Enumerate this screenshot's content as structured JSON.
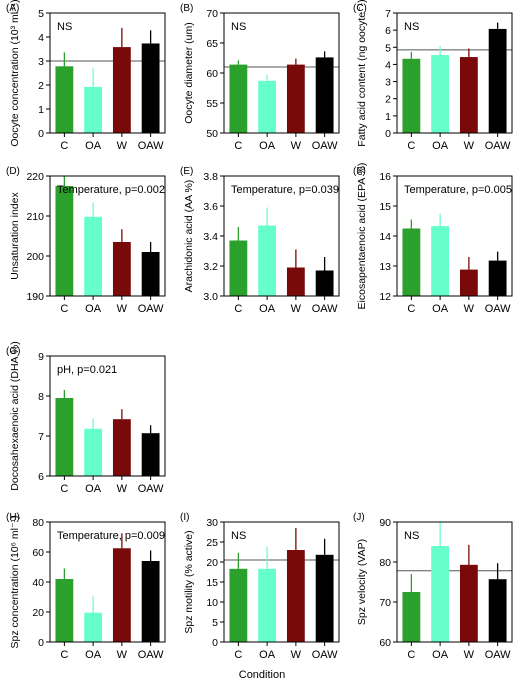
{
  "figure": {
    "xlabel": "Condition"
  },
  "chart_data": [
    {
      "type": "bar",
      "label": "(A)",
      "ylabel": "Oocyte concentration (10³ ml⁻¹)",
      "ylim": [
        0,
        5
      ],
      "yticks": [
        0,
        1,
        2,
        3,
        4,
        5
      ],
      "categories": [
        "C",
        "OA",
        "W",
        "OAW"
      ],
      "values": [
        2.78,
        1.92,
        3.58,
        3.73
      ],
      "errors": [
        0.58,
        0.78,
        0.8,
        0.55
      ],
      "reference_line": 3.0,
      "annotation": "NS",
      "colors": [
        "#2ca02c",
        "#66ffcc",
        "#7a0a0a",
        "#000000"
      ]
    },
    {
      "type": "bar",
      "label": "(B)",
      "ylabel": "Oocyte diameter (um)",
      "ylim": [
        50,
        70
      ],
      "yticks": [
        50,
        55,
        60,
        65,
        70
      ],
      "categories": [
        "C",
        "OA",
        "W",
        "OAW"
      ],
      "values": [
        61.4,
        58.7,
        61.4,
        62.6
      ],
      "errors": [
        0.7,
        1.0,
        1.0,
        1.0
      ],
      "reference_line": 61.0,
      "annotation": "NS",
      "colors": [
        "#2ca02c",
        "#66ffcc",
        "#7a0a0a",
        "#000000"
      ]
    },
    {
      "type": "bar",
      "label": "(C)",
      "ylabel": "Fatty acid content (ng oocyte⁻¹)",
      "ylim": [
        0,
        7
      ],
      "yticks": [
        0,
        1,
        2,
        3,
        4,
        5,
        6,
        7
      ],
      "categories": [
        "C",
        "OA",
        "W",
        "OAW"
      ],
      "values": [
        4.33,
        4.55,
        4.43,
        6.07
      ],
      "errors": [
        0.4,
        0.52,
        0.5,
        0.37
      ],
      "reference_line": 4.85,
      "annotation": "NS",
      "colors": [
        "#2ca02c",
        "#66ffcc",
        "#7a0a0a",
        "#000000"
      ]
    },
    {
      "type": "bar",
      "label": "(D)",
      "ylabel": "Unsaturation index",
      "ylim": [
        190,
        220
      ],
      "yticks": [
        190,
        200,
        210,
        220
      ],
      "categories": [
        "C",
        "OA",
        "W",
        "OAW"
      ],
      "values": [
        217.5,
        209.8,
        203.5,
        201.0
      ],
      "errors": [
        2.5,
        3.5,
        3.2,
        2.5
      ],
      "annotation": "Temperature, p=0.002",
      "colors": [
        "#2ca02c",
        "#66ffcc",
        "#7a0a0a",
        "#000000"
      ]
    },
    {
      "type": "bar",
      "label": "(E)",
      "ylabel": "Arachidonic acid (AA %)",
      "ylim": [
        3.0,
        3.8
      ],
      "yticks": [
        3.0,
        3.2,
        3.4,
        3.6,
        3.8
      ],
      "categories": [
        "C",
        "OA",
        "W",
        "OAW"
      ],
      "values": [
        3.37,
        3.47,
        3.19,
        3.17
      ],
      "errors": [
        0.09,
        0.12,
        0.12,
        0.09
      ],
      "annotation": "Temperature, p=0.039",
      "colors": [
        "#2ca02c",
        "#66ffcc",
        "#7a0a0a",
        "#000000"
      ]
    },
    {
      "type": "bar",
      "label": "(F)",
      "ylabel": "Eicosapentaenoic acid (EPA %)",
      "ylim": [
        12,
        16
      ],
      "yticks": [
        12,
        13,
        14,
        15,
        16
      ],
      "categories": [
        "C",
        "OA",
        "W",
        "OAW"
      ],
      "values": [
        14.25,
        14.33,
        12.88,
        13.18
      ],
      "errors": [
        0.3,
        0.42,
        0.42,
        0.3
      ],
      "annotation": "Temperature, p=0.005",
      "colors": [
        "#2ca02c",
        "#66ffcc",
        "#7a0a0a",
        "#000000"
      ]
    },
    {
      "type": "bar",
      "label": "(G)",
      "ylabel": "Docosahexaenoic acid (DHA %)",
      "ylim": [
        6,
        9
      ],
      "yticks": [
        6,
        7,
        8,
        9
      ],
      "categories": [
        "C",
        "OA",
        "W",
        "OAW"
      ],
      "values": [
        7.95,
        7.18,
        7.42,
        7.07
      ],
      "errors": [
        0.2,
        0.26,
        0.25,
        0.2
      ],
      "annotation": "pH, p=0.021",
      "colors": [
        "#2ca02c",
        "#66ffcc",
        "#7a0a0a",
        "#000000"
      ]
    },
    {
      "type": "bar",
      "label": "(H)",
      "ylabel": "Spz concentration (10⁶ ml⁻¹)",
      "ylim": [
        0,
        80
      ],
      "yticks": [
        0,
        20,
        40,
        60,
        80
      ],
      "categories": [
        "C",
        "OA",
        "W",
        "OAW"
      ],
      "values": [
        42,
        19.5,
        62.5,
        54
      ],
      "errors": [
        7,
        11,
        10,
        7
      ],
      "annotation": "Temperature, p=0.009",
      "colors": [
        "#2ca02c",
        "#66ffcc",
        "#7a0a0a",
        "#000000"
      ]
    },
    {
      "type": "bar",
      "label": "(I)",
      "ylabel": "Spz motility (% active)",
      "ylim": [
        0,
        30
      ],
      "yticks": [
        0,
        5,
        10,
        15,
        20,
        25,
        30
      ],
      "categories": [
        "C",
        "OA",
        "W",
        "OAW"
      ],
      "values": [
        18.3,
        18.3,
        23.0,
        21.8
      ],
      "errors": [
        4.0,
        5.5,
        5.5,
        4.0
      ],
      "reference_line": 20.5,
      "annotation": "NS",
      "colors": [
        "#2ca02c",
        "#66ffcc",
        "#7a0a0a",
        "#000000"
      ]
    },
    {
      "type": "bar",
      "label": "(J)",
      "ylabel": "Spz velocity (VAP)",
      "ylim": [
        60,
        90
      ],
      "yticks": [
        60,
        70,
        80,
        90
      ],
      "categories": [
        "C",
        "OA",
        "W",
        "OAW"
      ],
      "values": [
        72.5,
        84.0,
        79.3,
        75.7
      ],
      "errors": [
        4.5,
        6.0,
        5.0,
        4.0
      ],
      "reference_line": 77.8,
      "annotation": "NS",
      "colors": [
        "#2ca02c",
        "#66ffcc",
        "#7a0a0a",
        "#000000"
      ]
    }
  ]
}
